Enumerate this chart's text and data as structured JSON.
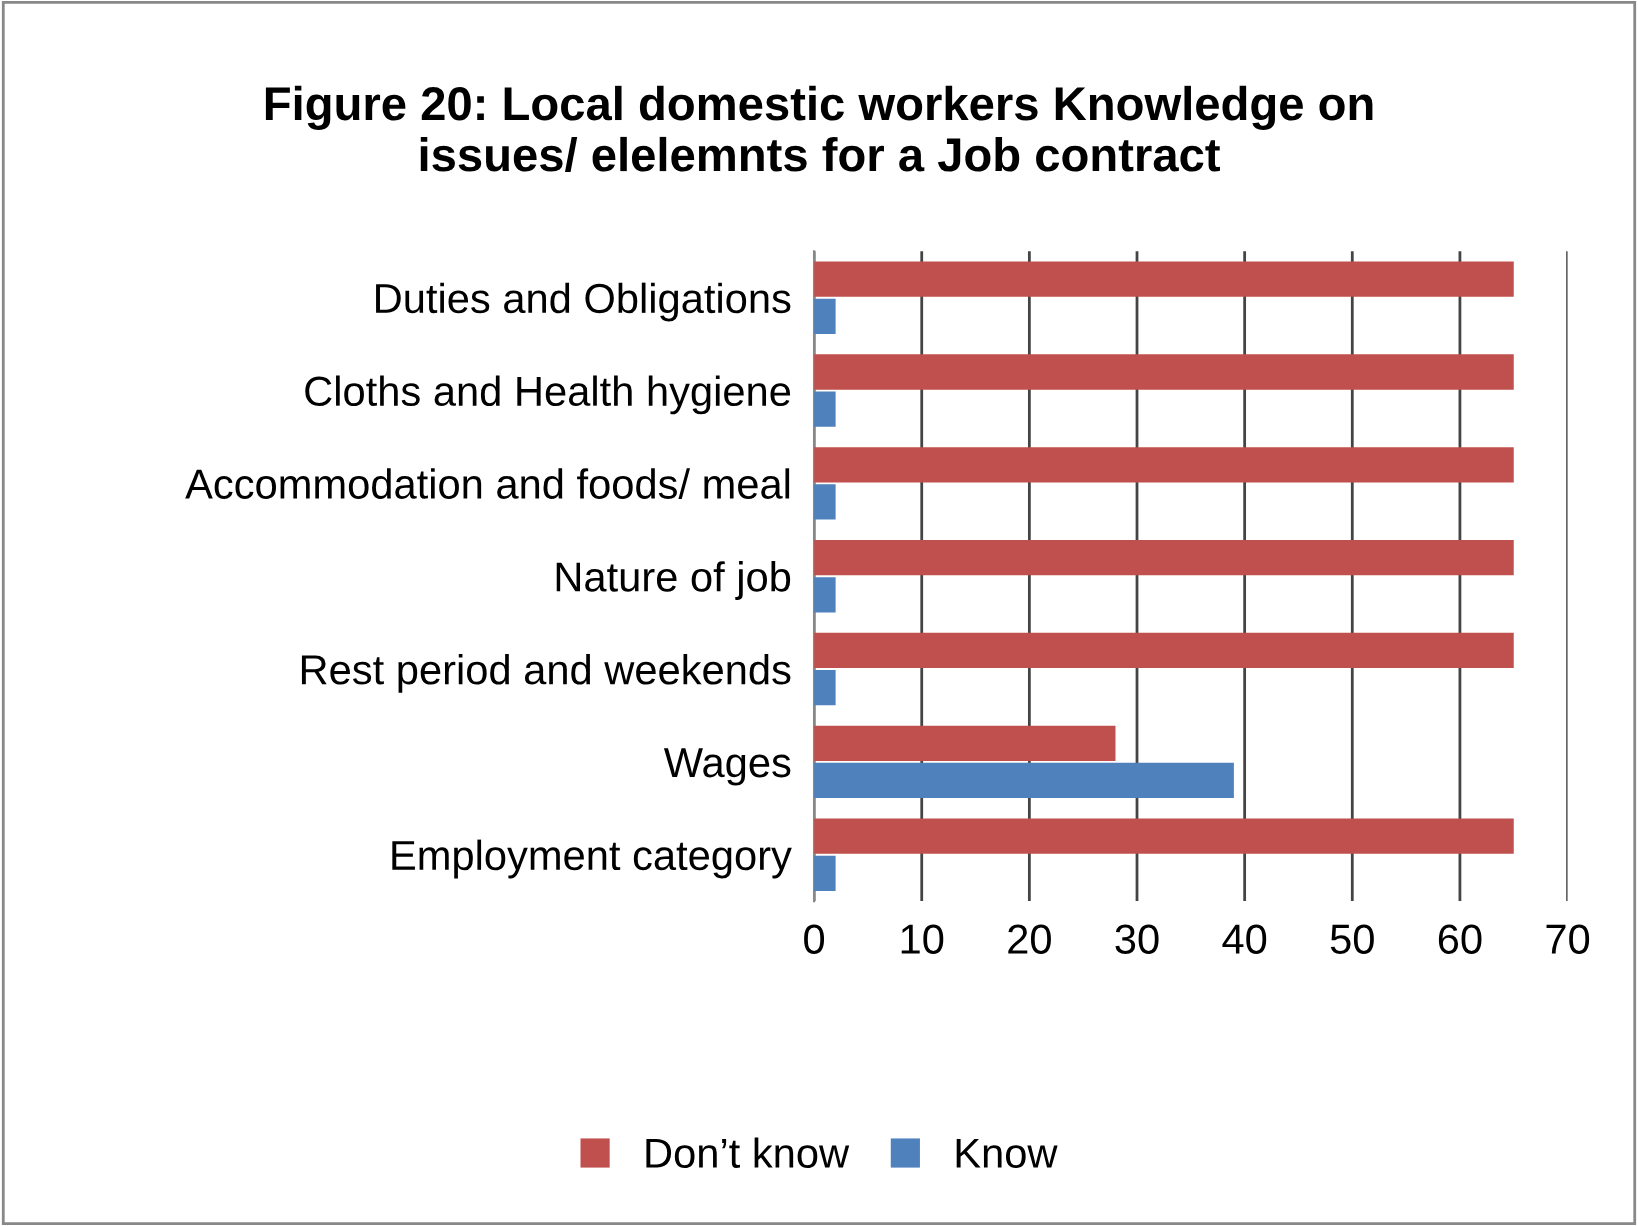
{
  "chart_data": {
    "type": "bar",
    "orientation": "horizontal",
    "title": "Figure 20: Local domestic workers Knowledge on\nissues/ elelemnts for a Job contract",
    "categories": [
      "Duties and Obligations",
      "Cloths and Health hygiene",
      "Accommodation and foods/ meal",
      "Nature of job",
      "Rest period and weekends",
      "Wages",
      "Employment category"
    ],
    "series": [
      {
        "name": "Don’t know",
        "color": "#c0504d",
        "values": [
          65,
          65,
          65,
          65,
          65,
          28,
          65
        ]
      },
      {
        "name": "Know",
        "color": "#4f81bd",
        "values": [
          2,
          2,
          2,
          2,
          2,
          39,
          2
        ]
      }
    ],
    "xlim": [
      0,
      70
    ],
    "xticks": [
      0,
      10,
      20,
      30,
      40,
      50,
      60,
      70
    ],
    "grid": "x",
    "legend": "bottom"
  }
}
